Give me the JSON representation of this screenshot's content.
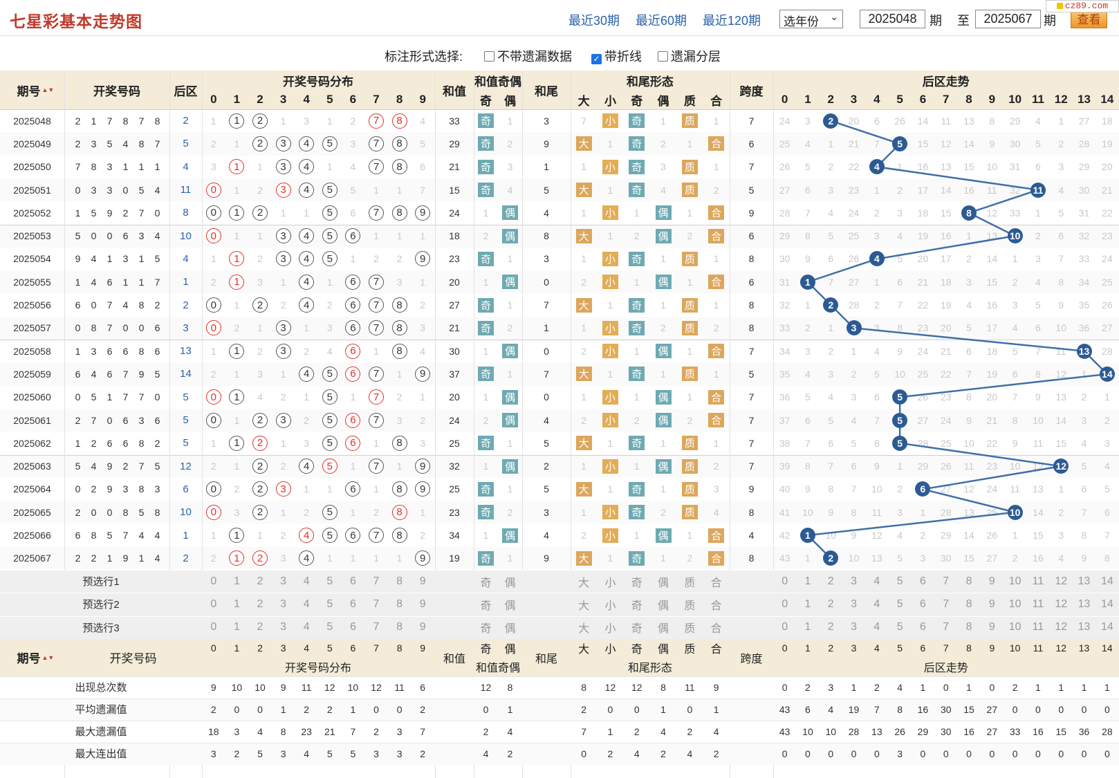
{
  "app": {
    "title": "七星彩基本走势图",
    "logo_text": "cz89.com"
  },
  "nav": {
    "links": [
      "最近30期",
      "最近60期",
      "最近120期"
    ],
    "year_select": "选年份",
    "from_issue": "2025048",
    "to_issue": "2025067",
    "issue_unit": "期",
    "to_label": "至",
    "search_label": "查看"
  },
  "options": {
    "label": "标注形式选择:",
    "items": [
      {
        "label": "不带遗漏数据",
        "checked": false
      },
      {
        "label": "带折线",
        "checked": true
      },
      {
        "label": "遗漏分层",
        "checked": false
      }
    ]
  },
  "headers": {
    "issue": "期号",
    "sort_icon": "▲▼",
    "numbers": "开奖号码",
    "back": "后区",
    "dist": "开奖号码分布",
    "sum": "和值",
    "sum_oe": "和值奇偶",
    "odd": "奇",
    "even": "偶",
    "tail": "和尾",
    "tail_form": "和尾形态",
    "big": "大",
    "small": "小",
    "prime": "质",
    "composite": "合",
    "span": "跨度",
    "back_trend": "后区走势",
    "dist_digits": [
      "0",
      "1",
      "2",
      "3",
      "4",
      "5",
      "6",
      "7",
      "8",
      "9"
    ],
    "back_digits": [
      "0",
      "1",
      "2",
      "3",
      "4",
      "5",
      "6",
      "7",
      "8",
      "9",
      "10",
      "11",
      "12",
      "13",
      "14"
    ]
  },
  "rows": [
    {
      "issue": "2025048",
      "nums": [
        "2",
        "1",
        "7",
        "8",
        "7",
        "8"
      ],
      "back": "2",
      "dist": [
        "1",
        "①",
        "②",
        "1",
        "3",
        "1",
        "2",
        "⑦",
        "⑧",
        "4"
      ],
      "sum": "33",
      "oe": [
        "奇",
        "1"
      ],
      "tail": "3",
      "form": [
        "7",
        "小",
        "奇",
        "1",
        "质",
        "1"
      ],
      "span": "7",
      "bt": [
        "24",
        "3",
        "2",
        "20",
        "6",
        "26",
        "14",
        "11",
        "13",
        "8",
        "29",
        "4",
        "1",
        "27",
        "18"
      ]
    },
    {
      "issue": "2025049",
      "nums": [
        "2",
        "3",
        "5",
        "4",
        "8",
        "7"
      ],
      "back": "5",
      "dist": [
        "2",
        "1",
        "②",
        "③",
        "④",
        "⑤",
        "3",
        "⑦",
        "⑧",
        "5"
      ],
      "sum": "29",
      "oe": [
        "奇",
        "2"
      ],
      "tail": "9",
      "form": [
        "大",
        "1",
        "奇",
        "2",
        "1",
        "合"
      ],
      "span": "6",
      "bt": [
        "25",
        "4",
        "1",
        "21",
        "7",
        "5",
        "15",
        "12",
        "14",
        "9",
        "30",
        "5",
        "2",
        "28",
        "19"
      ]
    },
    {
      "issue": "2025050",
      "nums": [
        "7",
        "8",
        "3",
        "1",
        "1",
        "1"
      ],
      "back": "4",
      "dist": [
        "3",
        "①",
        "1",
        "③",
        "④",
        "1",
        "4",
        "⑦",
        "⑧",
        "6"
      ],
      "sum": "21",
      "oe": [
        "奇",
        "3"
      ],
      "tail": "1",
      "form": [
        "1",
        "小",
        "奇",
        "3",
        "质",
        "1"
      ],
      "span": "7",
      "bt": [
        "26",
        "5",
        "2",
        "22",
        "4",
        "1",
        "16",
        "13",
        "15",
        "10",
        "31",
        "6",
        "3",
        "29",
        "20"
      ]
    },
    {
      "issue": "2025051",
      "nums": [
        "0",
        "3",
        "3",
        "0",
        "5",
        "4"
      ],
      "back": "11",
      "dist": [
        "⓪",
        "1",
        "2",
        "③",
        "④",
        "⑤",
        "5",
        "1",
        "1",
        "7"
      ],
      "sum": "15",
      "oe": [
        "奇",
        "4"
      ],
      "tail": "5",
      "form": [
        "大",
        "1",
        "奇",
        "4",
        "质",
        "2"
      ],
      "span": "5",
      "bt": [
        "27",
        "6",
        "3",
        "23",
        "1",
        "2",
        "17",
        "14",
        "16",
        "11",
        "32",
        "11",
        "4",
        "30",
        "21"
      ]
    },
    {
      "issue": "2025052",
      "nums": [
        "1",
        "5",
        "9",
        "2",
        "7",
        "0"
      ],
      "back": "8",
      "dist": [
        "⓪",
        "①",
        "②",
        "1",
        "1",
        "⑤",
        "6",
        "⑦",
        "⑧",
        "⑨"
      ],
      "sum": "24",
      "oe": [
        "1",
        "偶"
      ],
      "tail": "4",
      "form": [
        "1",
        "小",
        "1",
        "偶",
        "1",
        "合"
      ],
      "span": "9",
      "bt": [
        "28",
        "7",
        "4",
        "24",
        "2",
        "3",
        "18",
        "15",
        "8",
        "12",
        "33",
        "1",
        "5",
        "31",
        "22"
      ]
    },
    {
      "issue": "2025053",
      "nums": [
        "5",
        "0",
        "0",
        "6",
        "3",
        "4"
      ],
      "back": "10",
      "dist": [
        "⓪",
        "1",
        "1",
        "③",
        "④",
        "⑤",
        "⑥",
        "1",
        "1",
        "1"
      ],
      "sum": "18",
      "oe": [
        "2",
        "偶"
      ],
      "tail": "8",
      "form": [
        "大",
        "1",
        "2",
        "偶",
        "2",
        "合"
      ],
      "span": "6",
      "bt": [
        "29",
        "8",
        "5",
        "25",
        "3",
        "4",
        "19",
        "16",
        "1",
        "13",
        "10",
        "2",
        "6",
        "32",
        "23"
      ]
    },
    {
      "issue": "2025054",
      "nums": [
        "9",
        "4",
        "1",
        "3",
        "1",
        "5"
      ],
      "back": "4",
      "dist": [
        "1",
        "①",
        "2",
        "③",
        "④",
        "⑤",
        "1",
        "2",
        "2",
        "⑨"
      ],
      "sum": "23",
      "oe": [
        "奇",
        "1"
      ],
      "tail": "3",
      "form": [
        "1",
        "小",
        "奇",
        "1",
        "质",
        "1"
      ],
      "span": "8",
      "bt": [
        "30",
        "9",
        "6",
        "26",
        "4",
        "5",
        "20",
        "17",
        "2",
        "14",
        "1",
        "3",
        "7",
        "33",
        "24"
      ]
    },
    {
      "issue": "2025055",
      "nums": [
        "1",
        "4",
        "6",
        "1",
        "1",
        "7"
      ],
      "back": "1",
      "dist": [
        "2",
        "①",
        "3",
        "1",
        "④",
        "1",
        "⑥",
        "⑦",
        "3",
        "1"
      ],
      "sum": "20",
      "oe": [
        "1",
        "偶"
      ],
      "tail": "0",
      "form": [
        "2",
        "小",
        "1",
        "偶",
        "1",
        "合"
      ],
      "span": "6",
      "bt": [
        "31",
        "1",
        "7",
        "27",
        "1",
        "6",
        "21",
        "18",
        "3",
        "15",
        "2",
        "4",
        "8",
        "34",
        "25"
      ]
    },
    {
      "issue": "2025056",
      "nums": [
        "6",
        "0",
        "7",
        "4",
        "8",
        "2"
      ],
      "back": "2",
      "dist": [
        "⓪",
        "1",
        "②",
        "2",
        "④",
        "2",
        "⑥",
        "⑦",
        "⑧",
        "2"
      ],
      "sum": "27",
      "oe": [
        "奇",
        "1"
      ],
      "tail": "7",
      "form": [
        "大",
        "1",
        "奇",
        "1",
        "质",
        "1"
      ],
      "span": "8",
      "bt": [
        "32",
        "1",
        "2",
        "28",
        "2",
        "7",
        "22",
        "19",
        "4",
        "16",
        "3",
        "5",
        "9",
        "35",
        "26"
      ]
    },
    {
      "issue": "2025057",
      "nums": [
        "0",
        "8",
        "7",
        "0",
        "0",
        "6"
      ],
      "back": "3",
      "dist": [
        "⓪",
        "2",
        "1",
        "③",
        "1",
        "3",
        "⑥",
        "⑦",
        "⑧",
        "3"
      ],
      "sum": "21",
      "oe": [
        "奇",
        "2"
      ],
      "tail": "1",
      "form": [
        "1",
        "小",
        "奇",
        "2",
        "质",
        "2"
      ],
      "span": "8",
      "bt": [
        "33",
        "2",
        "1",
        "3",
        "3",
        "8",
        "23",
        "20",
        "5",
        "17",
        "4",
        "6",
        "10",
        "36",
        "27"
      ]
    },
    {
      "issue": "2025058",
      "nums": [
        "1",
        "3",
        "6",
        "6",
        "8",
        "6"
      ],
      "back": "13",
      "dist": [
        "1",
        "①",
        "2",
        "③",
        "2",
        "4",
        "⑥",
        "1",
        "⑧",
        "4"
      ],
      "sum": "30",
      "oe": [
        "1",
        "偶"
      ],
      "tail": "0",
      "form": [
        "2",
        "小",
        "1",
        "偶",
        "1",
        "合"
      ],
      "span": "7",
      "bt": [
        "34",
        "3",
        "2",
        "1",
        "4",
        "9",
        "24",
        "21",
        "6",
        "18",
        "5",
        "7",
        "11",
        "13",
        "28"
      ]
    },
    {
      "issue": "2025059",
      "nums": [
        "6",
        "4",
        "6",
        "7",
        "9",
        "5"
      ],
      "back": "14",
      "dist": [
        "2",
        "1",
        "3",
        "1",
        "④",
        "⑤",
        "⑥",
        "⑦",
        "1",
        "⑨"
      ],
      "sum": "37",
      "oe": [
        "奇",
        "1"
      ],
      "tail": "7",
      "form": [
        "大",
        "1",
        "奇",
        "1",
        "质",
        "1"
      ],
      "span": "5",
      "bt": [
        "35",
        "4",
        "3",
        "2",
        "5",
        "10",
        "25",
        "22",
        "7",
        "19",
        "6",
        "8",
        "12",
        "1",
        "14"
      ]
    },
    {
      "issue": "2025060",
      "nums": [
        "0",
        "5",
        "1",
        "7",
        "7",
        "0"
      ],
      "back": "5",
      "dist": [
        "⓪",
        "①",
        "4",
        "2",
        "1",
        "⑤",
        "1",
        "⑦",
        "2",
        "1"
      ],
      "sum": "20",
      "oe": [
        "1",
        "偶"
      ],
      "tail": "0",
      "form": [
        "1",
        "小",
        "1",
        "偶",
        "1",
        "合"
      ],
      "span": "7",
      "bt": [
        "36",
        "5",
        "4",
        "3",
        "6",
        "5",
        "26",
        "23",
        "8",
        "20",
        "7",
        "9",
        "13",
        "2",
        "1"
      ]
    },
    {
      "issue": "2025061",
      "nums": [
        "2",
        "7",
        "0",
        "6",
        "3",
        "6"
      ],
      "back": "5",
      "dist": [
        "⓪",
        "1",
        "②",
        "③",
        "2",
        "⑤",
        "⑥",
        "⑦",
        "3",
        "2"
      ],
      "sum": "24",
      "oe": [
        "2",
        "偶"
      ],
      "tail": "4",
      "form": [
        "2",
        "小",
        "2",
        "偶",
        "2",
        "合"
      ],
      "span": "7",
      "bt": [
        "37",
        "6",
        "5",
        "4",
        "7",
        "5",
        "27",
        "24",
        "9",
        "21",
        "8",
        "10",
        "14",
        "3",
        "2"
      ]
    },
    {
      "issue": "2025062",
      "nums": [
        "1",
        "2",
        "6",
        "6",
        "8",
        "2"
      ],
      "back": "5",
      "dist": [
        "1",
        "①",
        "②",
        "1",
        "3",
        "⑤",
        "⑥",
        "1",
        "⑧",
        "3"
      ],
      "sum": "25",
      "oe": [
        "奇",
        "1"
      ],
      "tail": "5",
      "form": [
        "大",
        "1",
        "奇",
        "1",
        "质",
        "1"
      ],
      "span": "7",
      "bt": [
        "38",
        "7",
        "6",
        "5",
        "8",
        "5",
        "28",
        "25",
        "10",
        "22",
        "9",
        "11",
        "15",
        "4",
        "3"
      ]
    },
    {
      "issue": "2025063",
      "nums": [
        "5",
        "4",
        "9",
        "2",
        "7",
        "5"
      ],
      "back": "12",
      "dist": [
        "2",
        "1",
        "②",
        "2",
        "④",
        "⑤",
        "1",
        "⑦",
        "1",
        "⑨"
      ],
      "sum": "32",
      "oe": [
        "1",
        "偶"
      ],
      "tail": "2",
      "form": [
        "1",
        "小",
        "1",
        "偶",
        "质",
        "2"
      ],
      "span": "7",
      "bt": [
        "39",
        "8",
        "7",
        "6",
        "9",
        "1",
        "29",
        "26",
        "11",
        "23",
        "10",
        "12",
        "12",
        "5",
        "4"
      ]
    },
    {
      "issue": "2025064",
      "nums": [
        "0",
        "2",
        "9",
        "3",
        "8",
        "3"
      ],
      "back": "6",
      "dist": [
        "⓪",
        "2",
        "②",
        "③",
        "1",
        "1",
        "⑥",
        "1",
        "⑧",
        "⑨"
      ],
      "sum": "25",
      "oe": [
        "奇",
        "1"
      ],
      "tail": "5",
      "form": [
        "大",
        "1",
        "奇",
        "1",
        "质",
        "3"
      ],
      "span": "9",
      "bt": [
        "40",
        "9",
        "8",
        "7",
        "10",
        "2",
        "6",
        "27",
        "12",
        "24",
        "11",
        "13",
        "1",
        "6",
        "5"
      ]
    },
    {
      "issue": "2025065",
      "nums": [
        "2",
        "0",
        "0",
        "8",
        "5",
        "8"
      ],
      "back": "10",
      "dist": [
        "⓪",
        "3",
        "②",
        "1",
        "2",
        "⑤",
        "1",
        "2",
        "⑧",
        "1"
      ],
      "sum": "23",
      "oe": [
        "奇",
        "2"
      ],
      "tail": "3",
      "form": [
        "1",
        "小",
        "奇",
        "2",
        "质",
        "4"
      ],
      "span": "8",
      "bt": [
        "41",
        "10",
        "9",
        "8",
        "11",
        "3",
        "1",
        "28",
        "13",
        "25",
        "10",
        "14",
        "2",
        "7",
        "6"
      ]
    },
    {
      "issue": "2025066",
      "nums": [
        "6",
        "8",
        "5",
        "7",
        "4",
        "4"
      ],
      "back": "1",
      "dist": [
        "1",
        "①",
        "1",
        "2",
        "④",
        "⑤",
        "⑥",
        "⑦",
        "⑧",
        "2"
      ],
      "sum": "34",
      "oe": [
        "1",
        "偶"
      ],
      "tail": "4",
      "form": [
        "2",
        "小",
        "1",
        "偶",
        "1",
        "合"
      ],
      "span": "4",
      "bt": [
        "42",
        "1",
        "10",
        "9",
        "12",
        "4",
        "2",
        "29",
        "14",
        "26",
        "1",
        "15",
        "3",
        "8",
        "7"
      ]
    },
    {
      "issue": "2025067",
      "nums": [
        "2",
        "2",
        "1",
        "9",
        "1",
        "4"
      ],
      "back": "2",
      "dist": [
        "2",
        "①",
        "②",
        "3",
        "④",
        "1",
        "1",
        "1",
        "1",
        "⑨"
      ],
      "sum": "19",
      "oe": [
        "奇",
        "1"
      ],
      "tail": "9",
      "form": [
        "大",
        "1",
        "奇",
        "1",
        "2",
        "合"
      ],
      "span": "8",
      "bt": [
        "43",
        "1",
        "2",
        "10",
        "13",
        "5",
        "3",
        "30",
        "15",
        "27",
        "2",
        "16",
        "4",
        "9",
        "8"
      ]
    }
  ],
  "pre_rows": [
    "预选行1",
    "预选行2",
    "预选行3"
  ],
  "pre_form": [
    "大",
    "小",
    "奇",
    "偶",
    "质",
    "合"
  ],
  "stats": [
    {
      "label": "出现总次数",
      "dist": [
        "9",
        "10",
        "10",
        "9",
        "11",
        "12",
        "10",
        "12",
        "11",
        "6"
      ],
      "oe": [
        "12",
        "8"
      ],
      "form": [
        "8",
        "12",
        "12",
        "8",
        "11",
        "9"
      ],
      "bt": [
        "0",
        "2",
        "3",
        "1",
        "2",
        "4",
        "1",
        "0",
        "1",
        "0",
        "2",
        "1",
        "1",
        "1",
        "1"
      ]
    },
    {
      "label": "平均遗漏值",
      "dist": [
        "2",
        "0",
        "0",
        "1",
        "2",
        "2",
        "1",
        "0",
        "0",
        "2"
      ],
      "oe": [
        "0",
        "1"
      ],
      "form": [
        "2",
        "0",
        "0",
        "1",
        "0",
        "1"
      ],
      "bt": [
        "43",
        "6",
        "4",
        "19",
        "7",
        "8",
        "16",
        "30",
        "15",
        "27",
        "0",
        "0",
        "0",
        "0",
        "0"
      ]
    },
    {
      "label": "最大遗漏值",
      "dist": [
        "18",
        "3",
        "4",
        "8",
        "23",
        "21",
        "7",
        "2",
        "3",
        "7"
      ],
      "oe": [
        "2",
        "4"
      ],
      "form": [
        "7",
        "1",
        "2",
        "4",
        "2",
        "4"
      ],
      "bt": [
        "43",
        "10",
        "10",
        "28",
        "13",
        "26",
        "29",
        "30",
        "16",
        "27",
        "33",
        "16",
        "15",
        "36",
        "28"
      ]
    },
    {
      "label": "最大连出值",
      "dist": [
        "3",
        "2",
        "5",
        "3",
        "4",
        "5",
        "5",
        "3",
        "3",
        "2"
      ],
      "oe": [
        "4",
        "2"
      ],
      "form": [
        "0",
        "2",
        "4",
        "2",
        "4",
        "2"
      ],
      "bt": [
        "0",
        "0",
        "0",
        "0",
        "0",
        "3",
        "0",
        "0",
        "0",
        "0",
        "0",
        "0",
        "0",
        "0",
        "0"
      ]
    }
  ],
  "colors": {
    "header_bg": "#f4ecd8",
    "ball": "#2c5b94",
    "hit_red": "#e0302a",
    "tag_orange": "#dca75c",
    "tag_teal": "#6eaab2",
    "title": "#c0392b",
    "link": "#2a62a8"
  }
}
